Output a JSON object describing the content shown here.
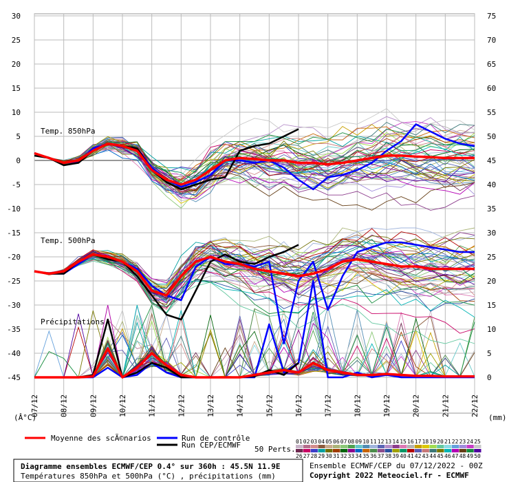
{
  "chart_data": {
    "type": "line",
    "x_unit_label": "(mm)",
    "y_unit_left": "(°C)",
    "y_unit_left_prefix": "(Â",
    "dates": [
      "07/12",
      "08/12",
      "09/12",
      "10/12",
      "11/12",
      "12/12",
      "13/12",
      "14/12",
      "15/12",
      "16/12",
      "17/12",
      "18/12",
      "19/12",
      "20/12",
      "21/12",
      "22/12"
    ],
    "left_axis": {
      "ticks": [
        30,
        25,
        20,
        15,
        10,
        5,
        0,
        -5,
        -10,
        -15,
        -20,
        -25,
        -30,
        -35,
        -40,
        -45
      ],
      "range": [
        -45,
        30
      ]
    },
    "right_axis": {
      "ticks": [
        75,
        70,
        65,
        60,
        55,
        50,
        45,
        40,
        35,
        30,
        25,
        20,
        15,
        10,
        5,
        0
      ]
    },
    "panel_labels": {
      "t850": "Temp. 850hPa",
      "t500": "Temp. 500hPa",
      "precip": "Précipitations"
    },
    "x_days": [
      0,
      0.5,
      1,
      1.5,
      2,
      2.5,
      3,
      3.5,
      4,
      4.5,
      5,
      5.5,
      6,
      6.5,
      7,
      7.5,
      8,
      8.5,
      9,
      9.5,
      10,
      10.5,
      11,
      11.5,
      12,
      12.5,
      13,
      13.5,
      14,
      14.5,
      15
    ],
    "series": [
      {
        "name": "Moyenne des scÃ©narios",
        "color": "#ff0000",
        "t850": [
          1.5,
          0.5,
          -0.5,
          0,
          2,
          3.5,
          3,
          2,
          -2,
          -4,
          -5,
          -4,
          -2,
          0,
          0.5,
          0.3,
          0,
          0,
          -0.5,
          -0.5,
          -0.8,
          -0.5,
          0,
          0.5,
          1,
          1,
          0.8,
          0.7,
          0.5,
          0.5,
          0.5
        ],
        "t500": [
          -23,
          -23.5,
          -23,
          -21,
          -19.5,
          -20,
          -21,
          -23,
          -27,
          -28,
          -24,
          -21,
          -20,
          -21,
          -21.5,
          -22.5,
          -23,
          -23.5,
          -24,
          -23.5,
          -22.5,
          -21,
          -20.5,
          -21,
          -21.5,
          -22,
          -22,
          -22.5,
          -22.5,
          -22.5,
          -22.5
        ],
        "precip": [
          -45,
          -45,
          -45,
          -45,
          -44.8,
          -39,
          -45,
          -43,
          -40,
          -42.5,
          -44.5,
          -45,
          -45,
          -45,
          -45,
          -44.5,
          -44,
          -43.5,
          -44,
          -42,
          -43.5,
          -44,
          -44.5,
          -44.5,
          -44.3,
          -44.5,
          -44.7,
          -44.7,
          -44.8,
          -44.8,
          -44.8
        ]
      },
      {
        "name": "Run de contrôle",
        "color": "#0000ff",
        "t850": [
          1.5,
          0.5,
          -0.5,
          -0.3,
          2.5,
          3.5,
          3,
          2.5,
          -1.5,
          -4,
          -5.5,
          -4.5,
          -3,
          0,
          0,
          -0.5,
          0,
          -1.5,
          -4,
          -6,
          -3.5,
          -3,
          -2,
          -0.5,
          2,
          4,
          7.5,
          6,
          4.5,
          3.5,
          3
        ],
        "t500": [
          -23,
          -23.5,
          -23.5,
          -21.5,
          -19.5,
          -20,
          -21,
          -22.5,
          -26,
          -28,
          -29,
          -22,
          -20,
          -21.5,
          -21.5,
          -22,
          -21,
          -38,
          -25,
          -21,
          -31,
          -24,
          -19,
          -18,
          -17,
          -17,
          -17.5,
          -18,
          -18.5,
          -19,
          -19
        ],
        "precip": [
          -45,
          -45,
          -45,
          -45,
          -45,
          -43,
          -45,
          -44.5,
          -42,
          -44,
          -45,
          -45,
          -45,
          -45,
          -45,
          -45,
          -34,
          -44,
          -42,
          -25,
          -45,
          -45,
          -44,
          -45,
          -44.5,
          -45,
          -45,
          -45,
          -45,
          -45,
          -45
        ]
      },
      {
        "name": "Run CEP/ECMWF",
        "color": "#000000",
        "t850": [
          1,
          0.5,
          -1,
          -0.5,
          2,
          3.5,
          3,
          2.5,
          -2,
          -4.5,
          -6,
          -5,
          -4,
          -3.5,
          2,
          3,
          3.5,
          5,
          6.5,
          null,
          null,
          null,
          null,
          null,
          null,
          null,
          null,
          null,
          null,
          null,
          null
        ],
        "t500": [
          -23,
          -23.5,
          -23.5,
          -21,
          -19.5,
          -20.5,
          -21,
          -24,
          -28,
          -32,
          -33,
          -27,
          -21,
          -19.5,
          -21,
          -21.5,
          -20,
          -19,
          -17.5,
          null,
          null,
          null,
          null,
          null,
          null,
          null,
          null,
          null,
          null,
          null,
          null
        ],
        "precip": [
          -45,
          -45,
          -45,
          -45,
          -44.5,
          -33,
          -45,
          -44,
          -42,
          -43,
          -45,
          -45,
          -45,
          -45,
          -45,
          -44.8,
          -43.5,
          -44.5,
          -42,
          null,
          null,
          null,
          null,
          null,
          null,
          null,
          null,
          null,
          null,
          null,
          null
        ]
      }
    ],
    "perturbations_label": "50 Perts.",
    "pert_numbers_top": [
      "01",
      "02",
      "03",
      "04",
      "05",
      "06",
      "07",
      "08",
      "09",
      "10",
      "11",
      "12",
      "13",
      "14",
      "15",
      "16",
      "17",
      "18",
      "19",
      "20",
      "21",
      "22",
      "23",
      "24",
      "25"
    ],
    "pert_numbers_bottom": [
      "26",
      "27",
      "28",
      "29",
      "30",
      "31",
      "32",
      "33",
      "34",
      "35",
      "36",
      "37",
      "38",
      "39",
      "40",
      "41",
      "42",
      "43",
      "44",
      "45",
      "46",
      "47",
      "48",
      "49",
      "50"
    ],
    "pert_colors": [
      "#c8b4c8",
      "#b46e8c",
      "#d28c8c",
      "#8c5a3c",
      "#c8aa8c",
      "#aab478",
      "#8cc878",
      "#50a050",
      "#64c8c8",
      "#508cb4",
      "#a0b4dc",
      "#5a64b4",
      "#b48cc8",
      "#8c3c8c",
      "#dc78b4",
      "#b4b4b4",
      "#c8a000",
      "#dcc800",
      "#a0dc50",
      "#64c8a0",
      "#8cdce6",
      "#64a0dc",
      "#a08cdc",
      "#c83cc8",
      "#c8c8c8"
    ],
    "info_box": {
      "line1": "Diagramme ensembles ECMWF/CEP 0.4° sur 360h : 45.5N 11.9E",
      "line2": "Températures 850hPa et 500hPa (°C) , précipitations (mm)"
    },
    "run_info": "Ensemble ECMWF/CEP du 07/12/2022 - 00Z",
    "copyright": "Copyright 2022 Meteociel.fr - ECMWF"
  }
}
